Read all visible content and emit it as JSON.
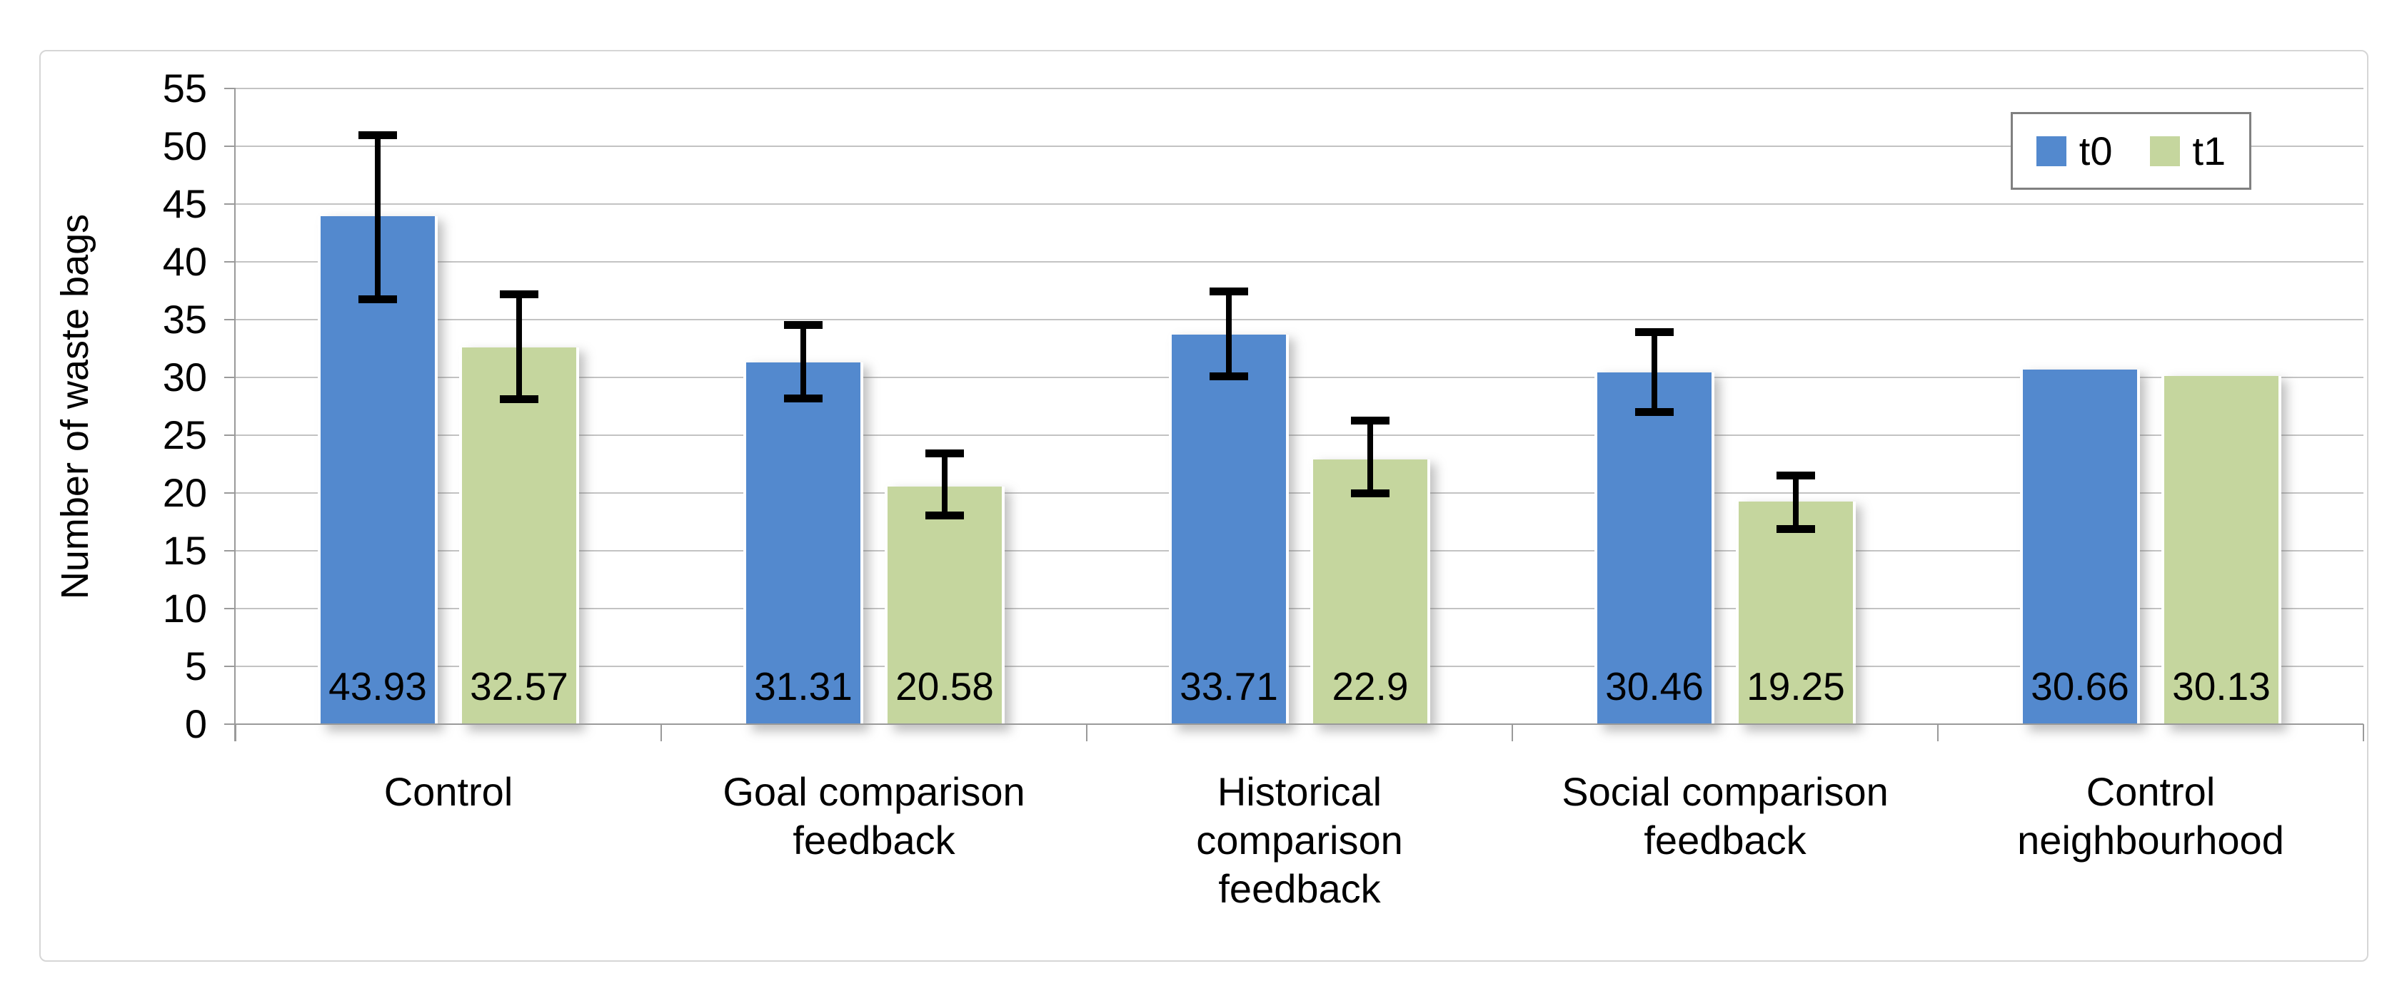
{
  "chart_data": {
    "type": "bar",
    "title": "",
    "ylabel": "Number of waste bags",
    "ylim": [
      0,
      55
    ],
    "ytick_step": 5,
    "ytick_labels": [
      "0",
      "5",
      "10",
      "15",
      "20",
      "25",
      "30",
      "35",
      "40",
      "45",
      "50",
      "55"
    ],
    "grid": true,
    "legend_position": "top-right",
    "categories": [
      "Control",
      "Goal comparison feedback",
      "Historical comparison feedback",
      "Social comparison feedback",
      "Control neighbourhood"
    ],
    "category_lines": [
      [
        "Control"
      ],
      [
        "Goal comparison",
        "feedback"
      ],
      [
        "Historical",
        "comparison",
        "feedback"
      ],
      [
        "Social comparison",
        "feedback"
      ],
      [
        "Control",
        "neighbourhood"
      ]
    ],
    "series": [
      {
        "name": "t0",
        "color": "#5389CE",
        "values": [
          43.93,
          31.31,
          33.71,
          30.46,
          30.66
        ],
        "labels": [
          "43.93",
          "31.31",
          "33.71",
          "30.46",
          "30.66"
        ],
        "err_plus": [
          7.2,
          3.4,
          3.9,
          3.6,
          null
        ],
        "err_minus": [
          7.3,
          3.3,
          3.8,
          3.6,
          null
        ]
      },
      {
        "name": "t1",
        "color": "#C5D69E",
        "values": [
          32.57,
          20.58,
          22.9,
          19.25,
          30.13
        ],
        "labels": [
          "32.57",
          "20.58",
          "22.9",
          "19.25",
          "30.13"
        ],
        "err_plus": [
          4.8,
          3.0,
          3.5,
          2.4,
          null
        ],
        "err_minus": [
          4.6,
          2.7,
          3.1,
          2.5,
          null
        ]
      }
    ],
    "colors": {
      "grid": "#C3C3C3",
      "axis": "#9A9A9A",
      "error_bar": "#000000",
      "text": "#000000",
      "legend_border": "#808080",
      "frame_border": "#D6D6D6",
      "background": "#FFFFFF"
    }
  }
}
